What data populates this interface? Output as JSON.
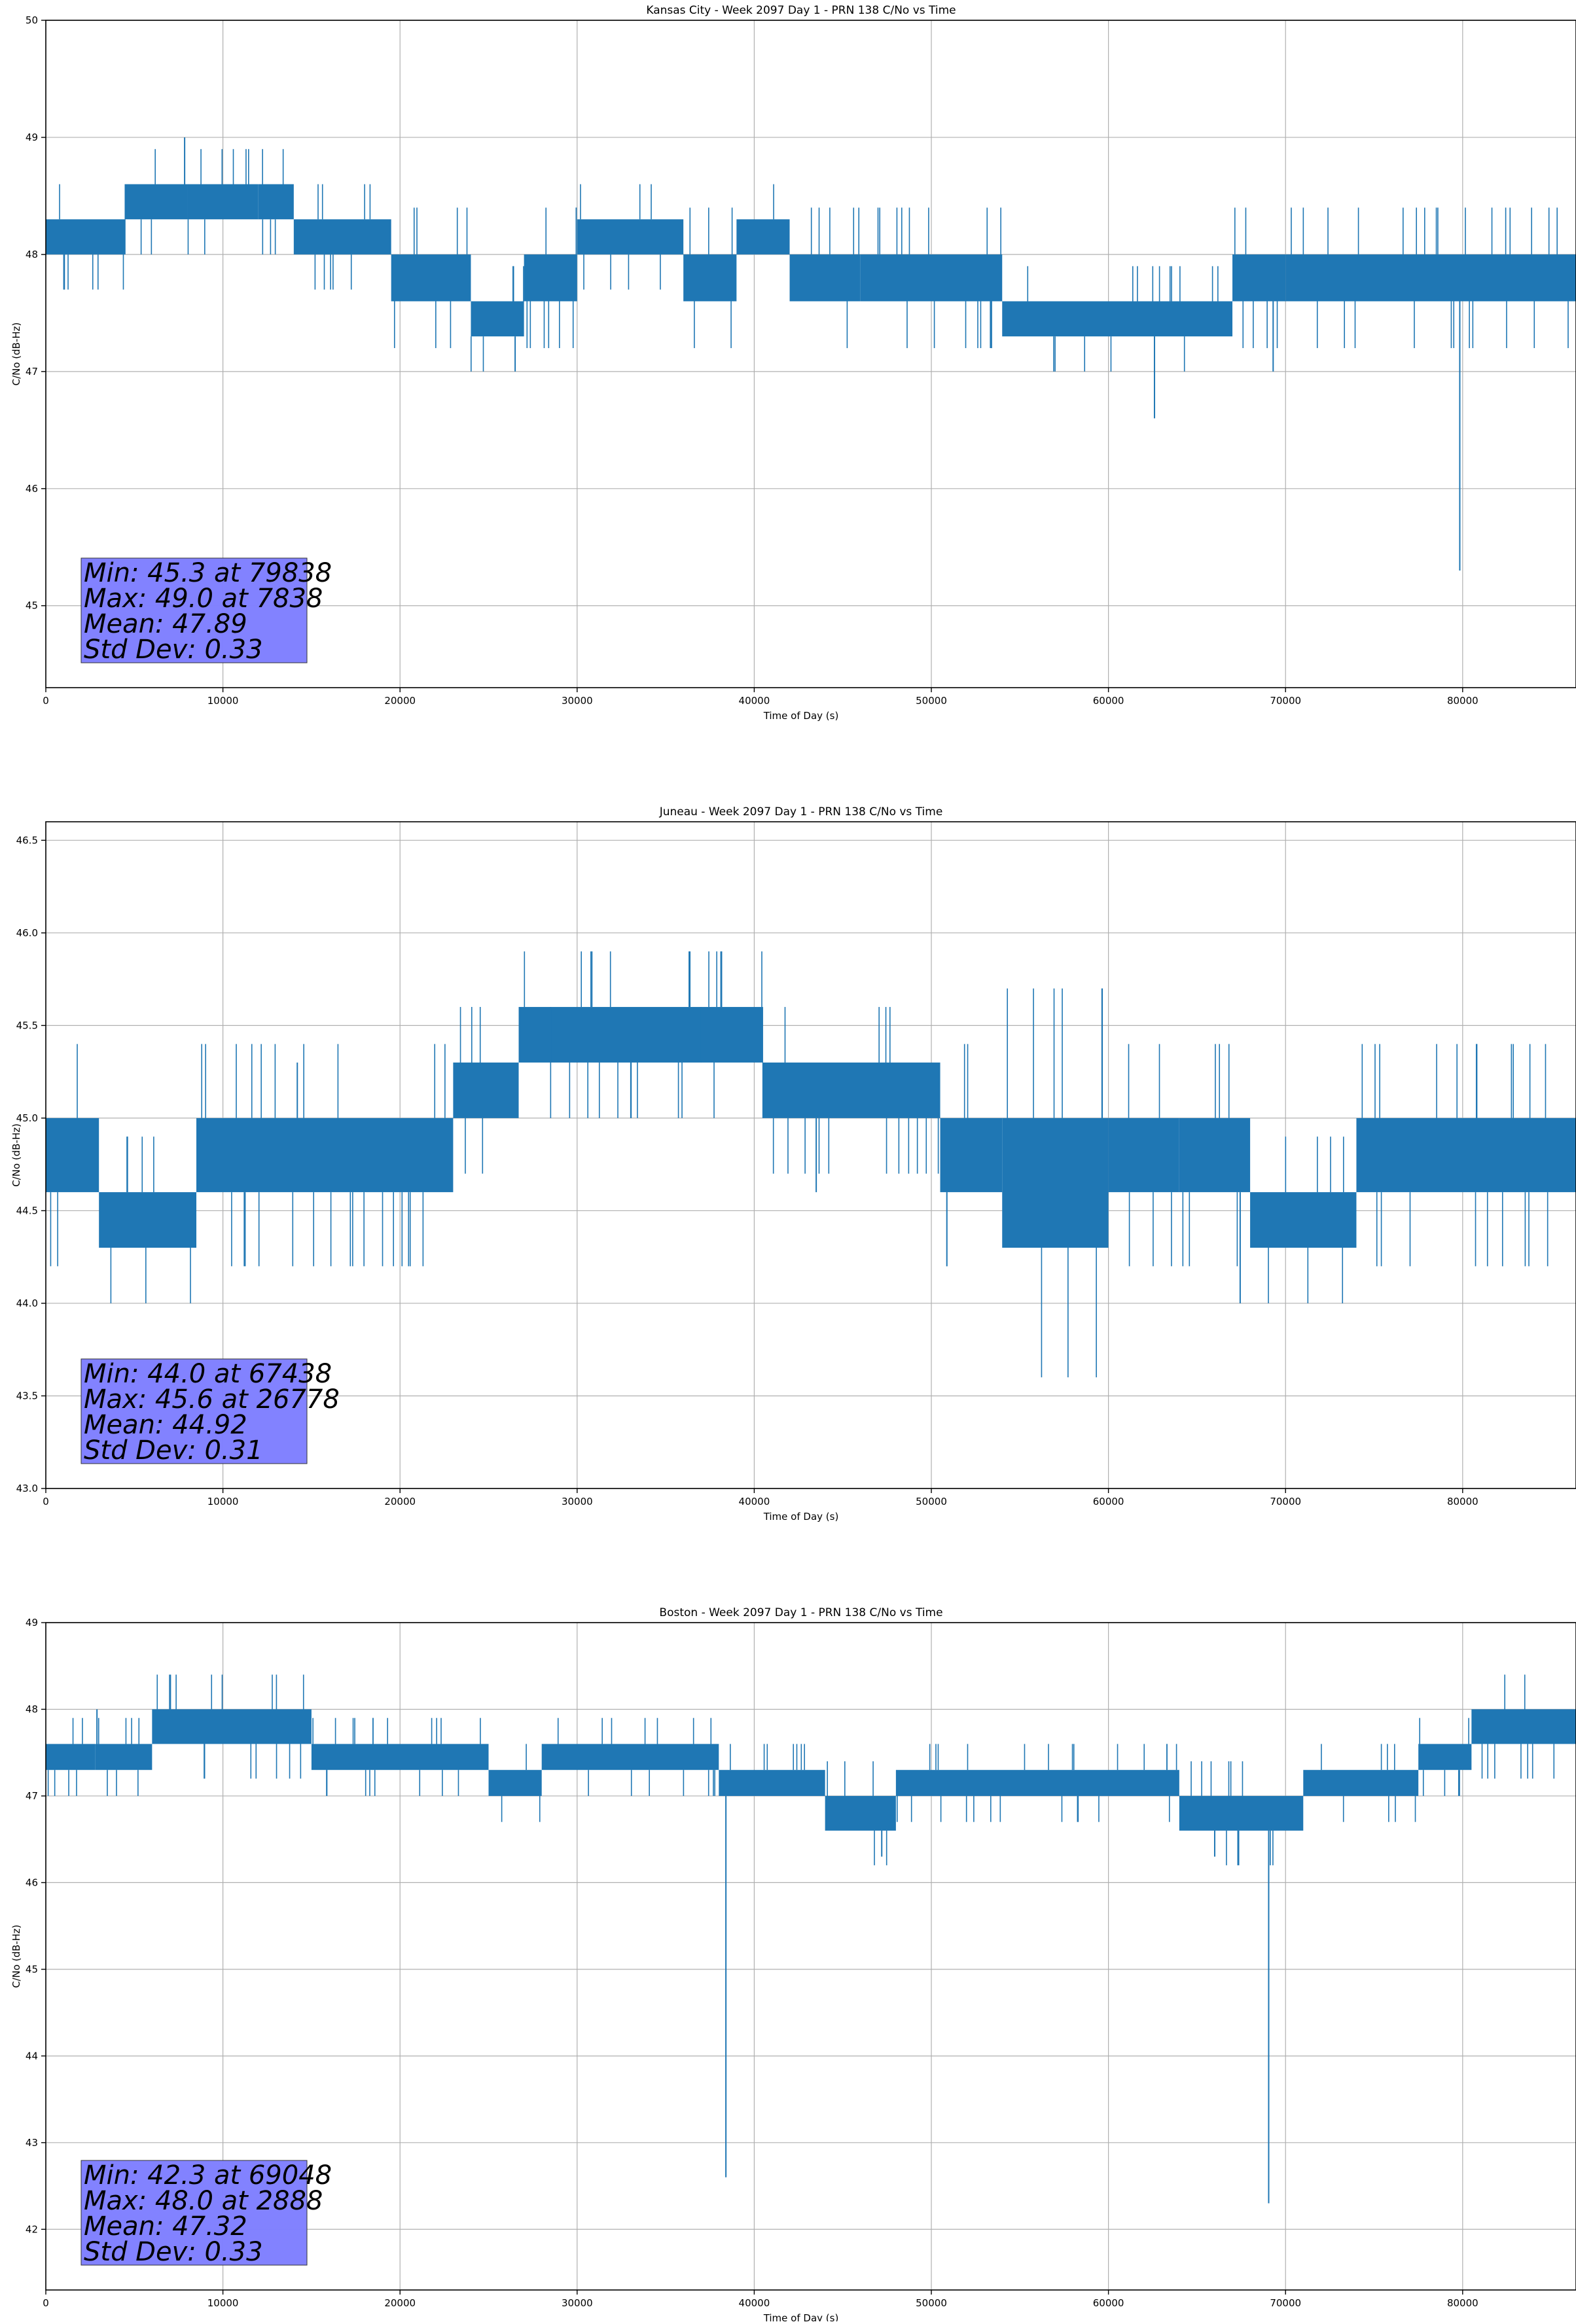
{
  "colors": {
    "series": "#1f77b4",
    "grid": "#b0b0b0",
    "stat_box": "#8080ff",
    "axis": "#000000"
  },
  "chart_data": [
    {
      "type": "line",
      "title": "Kansas City - Week 2097 Day 1 - PRN 138 C/No vs Time",
      "xlabel": "Time of Day (s)",
      "ylabel": "C/No (dB-Hz)",
      "xlim": [
        0,
        86400
      ],
      "ylim": [
        44.3,
        50.0
      ],
      "xticks": [
        "0",
        "10000",
        "20000",
        "30000",
        "40000",
        "50000",
        "60000",
        "70000",
        "80000"
      ],
      "yticks": [
        "45",
        "46",
        "47",
        "48",
        "49",
        "50"
      ],
      "grid": true,
      "stats": [
        "Min: 45.3 at 79838",
        "Max: 49.0 at 7838",
        "Mean: 47.89",
        "Std Dev: 0.33"
      ],
      "series": [
        {
          "band_segments": [
            [
              0,
              4500,
              48.0,
              48.3
            ],
            [
              4500,
              8000,
              48.3,
              48.6
            ],
            [
              8000,
              12000,
              48.3,
              48.6
            ],
            [
              12000,
              14000,
              48.3,
              48.6
            ],
            [
              14000,
              19500,
              48.0,
              48.3
            ],
            [
              19500,
              24000,
              47.6,
              48.0
            ],
            [
              24000,
              27000,
              47.3,
              47.6
            ],
            [
              27000,
              30000,
              47.6,
              48.0
            ],
            [
              30000,
              36000,
              48.0,
              48.3
            ],
            [
              36000,
              39000,
              47.6,
              48.0
            ],
            [
              39000,
              42000,
              48.0,
              48.3
            ],
            [
              42000,
              46000,
              47.6,
              48.0
            ],
            [
              46000,
              54000,
              47.6,
              48.0
            ],
            [
              54000,
              67000,
              47.3,
              47.6
            ],
            [
              67000,
              70000,
              47.6,
              48.0
            ],
            [
              70000,
              86400,
              47.6,
              48.0
            ]
          ],
          "spikes": [
            [
              7838,
              49.0
            ],
            [
              79838,
              45.3
            ],
            [
              62600,
              46.6
            ],
            [
              26500,
              47.0
            ],
            [
              69300,
              47.0
            ]
          ]
        }
      ]
    },
    {
      "type": "line",
      "title": "Juneau - Week 2097 Day 1 - PRN 138 C/No vs Time",
      "xlabel": "Time of Day (s)",
      "ylabel": "C/No (dB-Hz)",
      "xlim": [
        0,
        86400
      ],
      "ylim": [
        43.0,
        46.6
      ],
      "xticks": [
        "0",
        "10000",
        "20000",
        "30000",
        "40000",
        "50000",
        "60000",
        "70000",
        "80000"
      ],
      "yticks": [
        "43.0",
        "43.5",
        "44.0",
        "44.5",
        "45.0",
        "45.5",
        "46.0",
        "46.5"
      ],
      "grid": true,
      "stats": [
        "Min: 44.0 at 67438",
        "Max: 45.6 at 26778",
        "Mean: 44.92",
        "Std Dev: 0.31"
      ],
      "series": [
        {
          "band_segments": [
            [
              0,
              3000,
              44.6,
              45.0
            ],
            [
              3000,
              8500,
              44.3,
              44.6
            ],
            [
              8500,
              23000,
              44.6,
              45.0
            ],
            [
              23000,
              26700,
              45.0,
              45.3
            ],
            [
              26700,
              40500,
              45.3,
              45.6
            ],
            [
              40500,
              50500,
              45.0,
              45.3
            ],
            [
              50500,
              54000,
              44.6,
              45.0
            ],
            [
              54000,
              60000,
              44.3,
              45.0
            ],
            [
              60000,
              64000,
              44.6,
              45.0
            ],
            [
              64000,
              68000,
              44.6,
              45.0
            ],
            [
              68000,
              74000,
              44.3,
              44.6
            ],
            [
              74000,
              86400,
              44.6,
              45.0
            ]
          ],
          "spikes": [
            [
              14200,
              45.3
            ],
            [
              67438,
              44.0
            ],
            [
              43500,
              44.6
            ],
            [
              50800,
              44.6
            ],
            [
              28500,
              45.6
            ],
            [
              37000,
              45.6
            ]
          ]
        }
      ]
    },
    {
      "type": "line",
      "title": "Boston - Week 2097 Day 1 - PRN 138 C/No vs Time",
      "xlabel": "Time of Day (s)",
      "ylabel": "C/No (dB-Hz)",
      "xlim": [
        0,
        86400
      ],
      "ylim": [
        41.3,
        49.0
      ],
      "xticks": [
        "0",
        "10000",
        "20000",
        "30000",
        "40000",
        "50000",
        "60000",
        "70000",
        "80000"
      ],
      "yticks": [
        "42",
        "43",
        "44",
        "45",
        "46",
        "47",
        "48",
        "49"
      ],
      "grid": true,
      "stats": [
        "Min: 42.3 at 69048",
        "Max: 48.0 at 2888",
        "Mean: 47.32",
        "Std Dev: 0.33"
      ],
      "series": [
        {
          "band_segments": [
            [
              0,
              2800,
              47.3,
              47.6
            ],
            [
              2800,
              6000,
              47.3,
              47.6
            ],
            [
              6000,
              15000,
              47.6,
              48.0
            ],
            [
              15000,
              25000,
              47.3,
              47.6
            ],
            [
              25000,
              28000,
              47.0,
              47.3
            ],
            [
              28000,
              38000,
              47.3,
              47.6
            ],
            [
              38000,
              44000,
              47.0,
              47.3
            ],
            [
              44000,
              48000,
              46.6,
              47.0
            ],
            [
              48000,
              64000,
              47.0,
              47.3
            ],
            [
              64000,
              71000,
              46.6,
              47.0
            ],
            [
              71000,
              77500,
              47.0,
              47.3
            ],
            [
              77500,
              80500,
              47.3,
              47.6
            ],
            [
              80500,
              86400,
              47.6,
              48.0
            ]
          ],
          "spikes": [
            [
              2888,
              48.0
            ],
            [
              38400,
              42.6
            ],
            [
              69048,
              42.3
            ],
            [
              47200,
              46.3
            ],
            [
              66000,
              46.3
            ]
          ]
        }
      ]
    }
  ]
}
